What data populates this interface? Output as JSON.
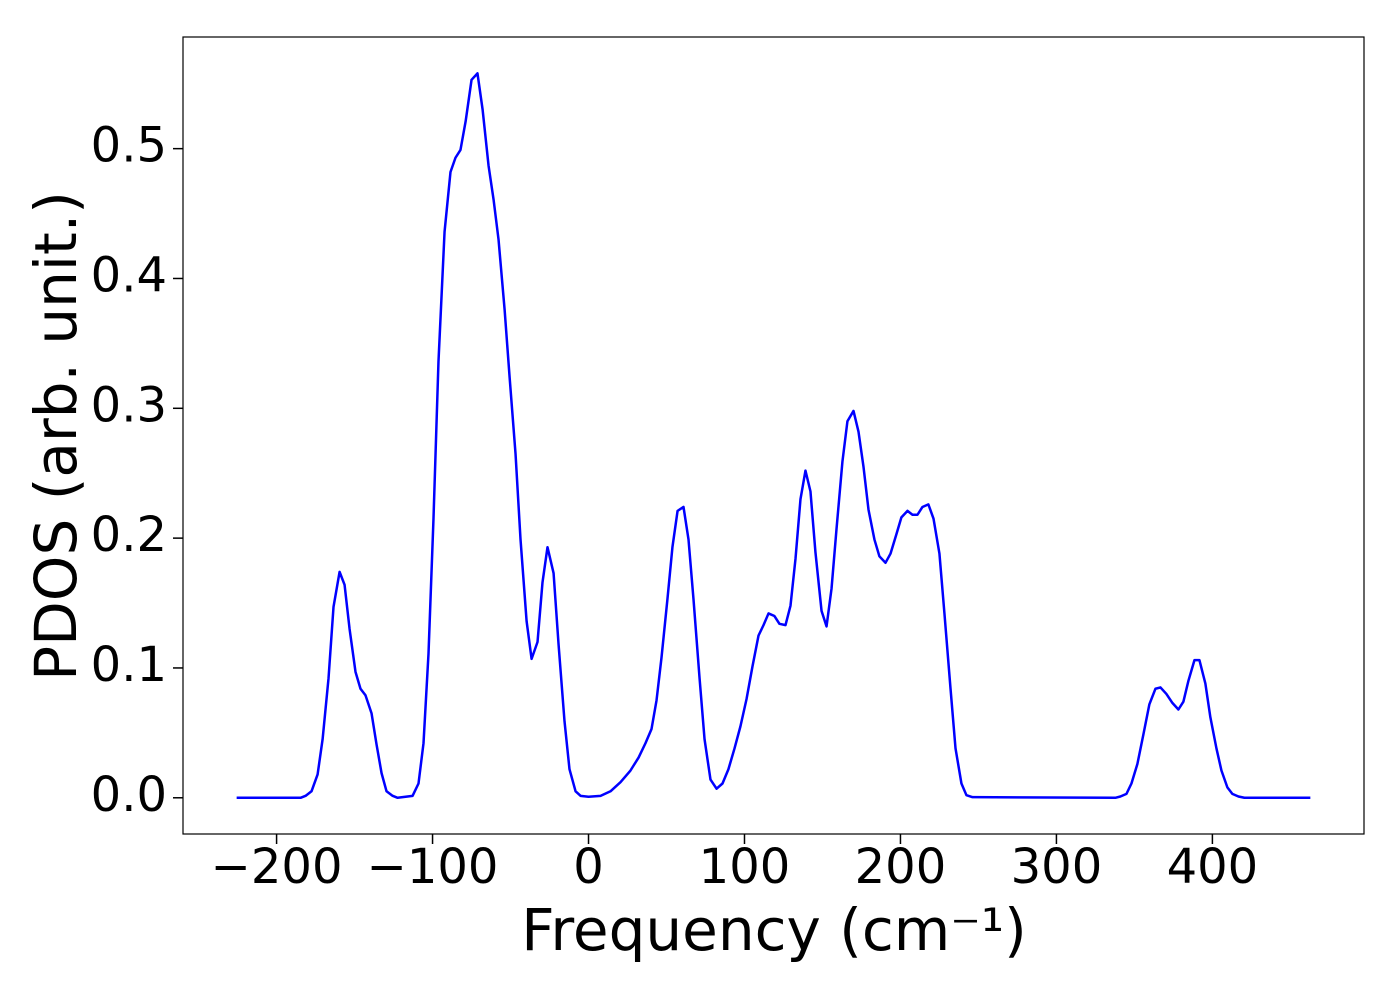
{
  "chart_data": {
    "type": "line",
    "xlabel": "Frequency (cm⁻¹)",
    "ylabel": "PDOS (arb. unit.)",
    "xlim": [
      -260,
      497.2
    ],
    "ylim": [
      -0.0279,
      0.586
    ],
    "xticks": [
      {
        "value": -200,
        "label": "−200"
      },
      {
        "value": -100,
        "label": "−100"
      },
      0,
      100,
      200,
      300,
      400
    ],
    "yticks": [
      {
        "value": 0,
        "label": "0.0"
      },
      0.1,
      0.2,
      0.3,
      0.4,
      0.5
    ],
    "grid": false,
    "series": [
      {
        "color": "#0000ff",
        "x": [
          -225.6,
          -184.6,
          -181.4,
          -177.6,
          -173.7,
          -170.5,
          -166.7,
          -163.5,
          -159.6,
          -156.4,
          -153.2,
          -149.4,
          -146.2,
          -143.0,
          -139.1,
          -135.9,
          -132.7,
          -129.5,
          -125.6,
          -122.4,
          -112.8,
          -109.0,
          -105.8,
          -102.6,
          -99.4,
          -96.2,
          -92.3,
          -88.5,
          -85.3,
          -82.1,
          -78.8,
          -75.0,
          -71.2,
          -67.9,
          -64.1,
          -60.9,
          -57.7,
          -53.8,
          -50.6,
          -46.8,
          -43.6,
          -39.7,
          -36.5,
          -32.7,
          -29.5,
          -26.3,
          -22.4,
          -19.2,
          -15.4,
          -12.2,
          -8.3,
          -5.1,
          0,
          7.7,
          14.1,
          20.5,
          26.9,
          32.1,
          36.5,
          40.4,
          43.6,
          46.8,
          50.6,
          53.8,
          57.1,
          60.9,
          64.1,
          67.3,
          71.2,
          74.4,
          78.2,
          82.1,
          85.9,
          89.7,
          93.6,
          97.4,
          101.3,
          105.1,
          109.0,
          112.2,
          115.4,
          119.2,
          122.4,
          126.3,
          129.5,
          132.7,
          135.9,
          139.1,
          142.3,
          145.5,
          149.4,
          152.6,
          155.8,
          159.0,
          162.8,
          166.0,
          169.9,
          173.1,
          176.3,
          179.5,
          183.3,
          186.5,
          190.4,
          193.6,
          197.4,
          200.6,
          204.5,
          207.7,
          210.9,
          214.1,
          217.9,
          221.2,
          225.0,
          228.2,
          232.1,
          235.3,
          239.1,
          242.3,
          246.2,
          337.8,
          341.0,
          344.9,
          348.1,
          351.9,
          355.8,
          359.6,
          363.5,
          366.7,
          370.5,
          374.4,
          378.2,
          381.4,
          384.6,
          388.5,
          391.7,
          395.5,
          398.7,
          402.6,
          405.8,
          409.6,
          412.8,
          416.7,
          420.5,
          462.8
        ],
        "values": [
          0,
          0,
          0.0015,
          0.005,
          0.018,
          0.045,
          0.092,
          0.147,
          0.174,
          0.164,
          0.13,
          0.097,
          0.084,
          0.079,
          0.065,
          0.041,
          0.019,
          0.005,
          0.0015,
          0,
          0.0015,
          0.011,
          0.042,
          0.111,
          0.215,
          0.336,
          0.436,
          0.482,
          0.493,
          0.499,
          0.521,
          0.553,
          0.558,
          0.53,
          0.487,
          0.461,
          0.43,
          0.376,
          0.324,
          0.265,
          0.199,
          0.136,
          0.107,
          0.12,
          0.166,
          0.193,
          0.173,
          0.118,
          0.059,
          0.022,
          0.005,
          0.0015,
          0.0008,
          0.0015,
          0.005,
          0.012,
          0.021,
          0.031,
          0.042,
          0.053,
          0.075,
          0.108,
          0.153,
          0.193,
          0.221,
          0.224,
          0.199,
          0.153,
          0.092,
          0.045,
          0.014,
          0.007,
          0.011,
          0.022,
          0.038,
          0.055,
          0.076,
          0.101,
          0.125,
          0.133,
          0.142,
          0.14,
          0.134,
          0.133,
          0.148,
          0.184,
          0.23,
          0.252,
          0.236,
          0.189,
          0.144,
          0.132,
          0.161,
          0.207,
          0.259,
          0.29,
          0.298,
          0.282,
          0.255,
          0.222,
          0.199,
          0.186,
          0.181,
          0.188,
          0.203,
          0.216,
          0.221,
          0.218,
          0.218,
          0.224,
          0.226,
          0.215,
          0.188,
          0.142,
          0.084,
          0.038,
          0.011,
          0.002,
          0.0005,
          0,
          0.001,
          0.003,
          0.011,
          0.026,
          0.049,
          0.072,
          0.084,
          0.085,
          0.08,
          0.073,
          0.068,
          0.074,
          0.09,
          0.106,
          0.106,
          0.088,
          0.062,
          0.038,
          0.021,
          0.008,
          0.003,
          0.001,
          0,
          0
        ]
      }
    ]
  }
}
